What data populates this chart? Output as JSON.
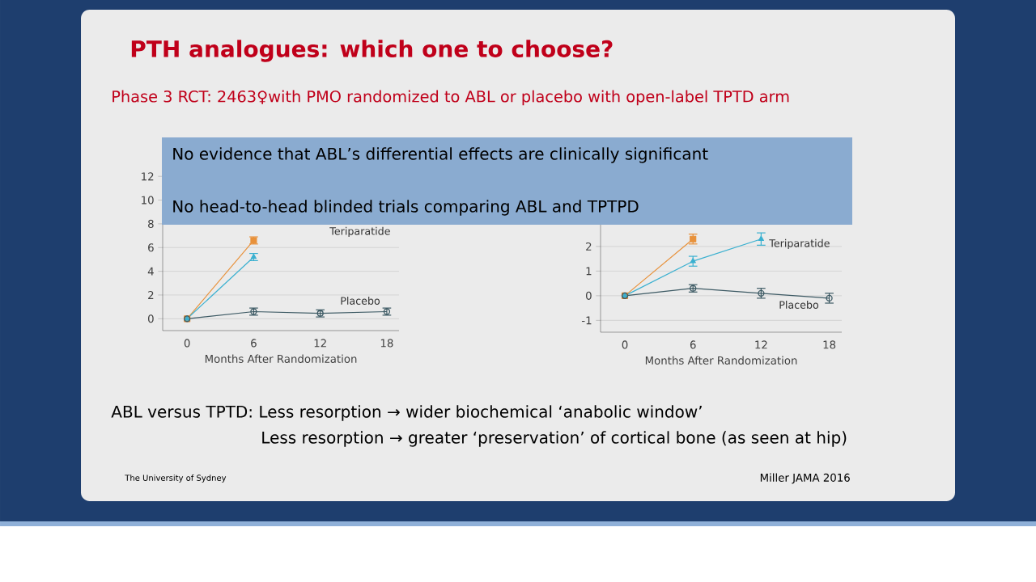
{
  "chart_data": [
    {
      "type": "line",
      "title": "PTH analogues: which one to choose?",
      "subtitle": "Phase 3 RCT: 2463♀with PMO randomized to ABL or placebo with open-label TPTD arm",
      "xlabel": "Months After Randomization",
      "x": [
        0,
        6,
        12,
        18
      ],
      "xlim": [
        -2.2,
        19.1
      ],
      "xticks": [
        0,
        6,
        12,
        18
      ],
      "ylim": [
        -1,
        12.9
      ],
      "yticks": [
        0,
        2,
        4,
        6,
        8,
        10,
        12
      ],
      "grid": "y",
      "series": [
        {
          "color": "#e8913a",
          "marker": "square",
          "values": [
            0,
            6.6,
            null,
            null
          ],
          "errors": [
            null,
            0.3,
            null,
            null
          ]
        },
        {
          "color": "#3ab0d0",
          "marker": "triangle",
          "values": [
            0,
            5.2,
            null,
            null
          ],
          "errors": [
            null,
            0.3,
            null,
            null
          ]
        },
        {
          "color": "#3d5a64",
          "marker": "circle",
          "values": [
            0,
            0.6,
            0.45,
            0.6
          ],
          "errors": [
            null,
            0.3,
            0.3,
            0.3
          ]
        }
      ],
      "annotations": [
        "ABL versus TPTD: Less resorption → wider biochemical ‘anabolic window’",
        "Less resorption → greater ‘preservation’ of cortical bone (as seen at hip)",
        "The University of Sydney",
        "Miller JAMA 2016",
        "Teriparatide",
        "Placebo"
      ]
    },
    {
      "type": "line",
      "xlabel": "Months After Randomization",
      "x": [
        0,
        6,
        12,
        18
      ],
      "xlim": [
        -2.14,
        19.1
      ],
      "xticks": [
        0,
        6,
        12,
        18
      ],
      "ylim": [
        -1.48,
        3.8
      ],
      "yticks": [
        -1,
        0,
        1,
        2
      ],
      "grid": "y",
      "series": [
        {
          "color": "#e8913a",
          "marker": "square",
          "values": [
            0,
            2.3,
            null,
            null
          ],
          "errors": [
            null,
            0.2,
            null,
            null
          ]
        },
        {
          "color": "#3ab0d0",
          "marker": "triangle",
          "values": [
            0,
            1.4,
            2.3,
            null
          ],
          "errors": [
            null,
            0.2,
            0.25,
            null
          ]
        },
        {
          "color": "#3d5a64",
          "marker": "circle",
          "values": [
            0,
            0.3,
            0.1,
            -0.1
          ],
          "errors": [
            null,
            0.15,
            0.2,
            0.2
          ]
        }
      ],
      "annotations": [
        "Teriparatide",
        "Placebo"
      ]
    },
    {
      "type": "other",
      "annotations": [
        "No evidence that ABL’s differential effects are clinically significant",
        "No head-to-head blinded trials comparing ABL and TPTPD"
      ]
    }
  ]
}
